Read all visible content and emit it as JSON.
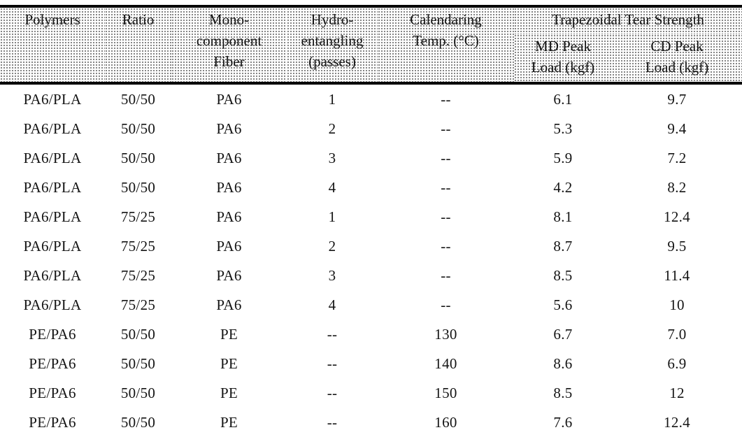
{
  "table": {
    "columns": {
      "polymers": "Polymers",
      "ratio": "Ratio",
      "fiber": "Mono-\ncomponent\nFiber",
      "hydro": "Hydro-\nentangling\n(passes)",
      "calendaring": "Calendaring\nTemp. (°C)",
      "tear_group": "Trapezoidal Tear Strength",
      "md": "MD Peak\nLoad (kgf)",
      "cd": "CD Peak\nLoad (kgf)"
    },
    "rows": [
      [
        "PA6/PLA",
        "50/50",
        "PA6",
        "1",
        "--",
        "6.1",
        "9.7"
      ],
      [
        "PA6/PLA",
        "50/50",
        "PA6",
        "2",
        "--",
        "5.3",
        "9.4"
      ],
      [
        "PA6/PLA",
        "50/50",
        "PA6",
        "3",
        "--",
        "5.9",
        "7.2"
      ],
      [
        "PA6/PLA",
        "50/50",
        "PA6",
        "4",
        "--",
        "4.2",
        "8.2"
      ],
      [
        "PA6/PLA",
        "75/25",
        "PA6",
        "1",
        "--",
        "8.1",
        "12.4"
      ],
      [
        "PA6/PLA",
        "75/25",
        "PA6",
        "2",
        "--",
        "8.7",
        "9.5"
      ],
      [
        "PA6/PLA",
        "75/25",
        "PA6",
        "3",
        "--",
        "8.5",
        "11.4"
      ],
      [
        "PA6/PLA",
        "75/25",
        "PA6",
        "4",
        "--",
        "5.6",
        "10"
      ],
      [
        "PE/PA6",
        "50/50",
        "PE",
        "--",
        "130",
        "6.7",
        "7.0"
      ],
      [
        "PE/PA6",
        "50/50",
        "PE",
        "--",
        "140",
        "8.6",
        "6.9"
      ],
      [
        "PE/PA6",
        "50/50",
        "PE",
        "--",
        "150",
        "8.5",
        "12"
      ],
      [
        "PE/PA6",
        "50/50",
        "PE",
        "--",
        "160",
        "7.6",
        "12.4"
      ]
    ],
    "colors": {
      "background": "#ffffff",
      "text": "#141414",
      "rule": "#000000",
      "header_stipple_dot": "#6e6e6e"
    }
  }
}
